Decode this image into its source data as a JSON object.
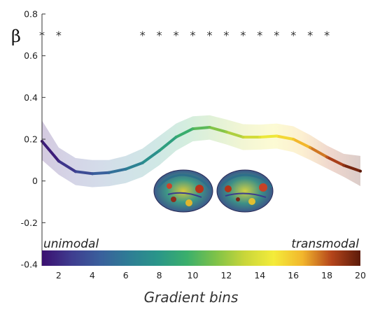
{
  "chart_data": {
    "type": "line",
    "ylabel": "β",
    "xlabel": "Gradient bins",
    "xlim": [
      1,
      20
    ],
    "ylim": [
      -0.4,
      0.8
    ],
    "x_ticks": [
      2,
      4,
      6,
      8,
      10,
      12,
      14,
      16,
      18,
      20
    ],
    "y_ticks": [
      -0.4,
      -0.2,
      0,
      0.2,
      0.4,
      0.6,
      0.8
    ],
    "x": [
      1,
      2,
      3,
      4,
      5,
      6,
      7,
      8,
      9,
      10,
      11,
      12,
      13,
      14,
      15,
      16,
      17,
      18,
      19,
      20
    ],
    "values": [
      0.19,
      0.095,
      0.045,
      0.035,
      0.04,
      0.057,
      0.087,
      0.145,
      0.21,
      0.25,
      0.257,
      0.235,
      0.21,
      0.21,
      0.215,
      0.2,
      0.16,
      0.115,
      0.075,
      0.047
    ],
    "ci_upper": [
      0.29,
      0.16,
      0.11,
      0.1,
      0.1,
      0.12,
      0.155,
      0.215,
      0.275,
      0.31,
      0.315,
      0.295,
      0.272,
      0.27,
      0.275,
      0.262,
      0.22,
      0.17,
      0.13,
      0.12
    ],
    "ci_lower": [
      0.1,
      0.03,
      -0.02,
      -0.03,
      -0.025,
      -0.01,
      0.02,
      0.075,
      0.145,
      0.19,
      0.198,
      0.175,
      0.148,
      0.15,
      0.155,
      0.138,
      0.1,
      0.06,
      0.02,
      -0.025
    ],
    "significant_bins": [
      1,
      2,
      7,
      8,
      9,
      10,
      11,
      12,
      13,
      14,
      15,
      16,
      17,
      18
    ],
    "significance_marker": "*",
    "significance_y": 0.7,
    "colorbar": {
      "left_label": "unimodal",
      "right_label": "transmodal",
      "colormap": [
        "#3b0f70",
        "#3f3c8f",
        "#3a5f9c",
        "#2e7d95",
        "#2a9689",
        "#3aaf6c",
        "#7ec248",
        "#c9d63a",
        "#f4ec3a",
        "#f2b62c",
        "#b5451b",
        "#5c1a0a"
      ]
    },
    "inset_image": "brain-surface-render",
    "grid": false,
    "legend": "none"
  }
}
